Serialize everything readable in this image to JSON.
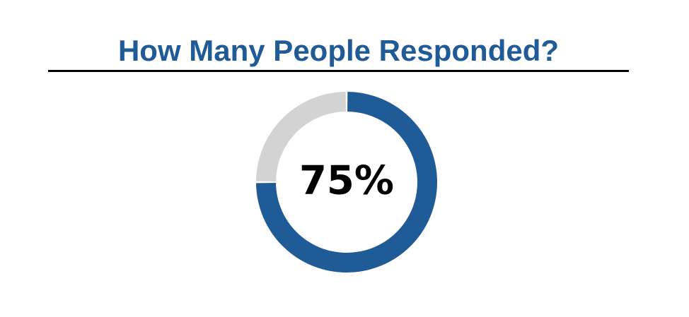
{
  "colors": {
    "title": "#1f5b96",
    "responded": "#1f5b96",
    "remaining": "#d3d3d3",
    "rule": "#000000",
    "center_label": "#000000"
  },
  "chart_data": {
    "type": "pie",
    "variant": "donut",
    "title": "How Many People Responded?",
    "values": [
      75,
      25
    ],
    "value_unit": "%",
    "center_label": "75%",
    "start_angle_deg": 0,
    "direction": "clockwise",
    "gap_between_slices": true
  }
}
